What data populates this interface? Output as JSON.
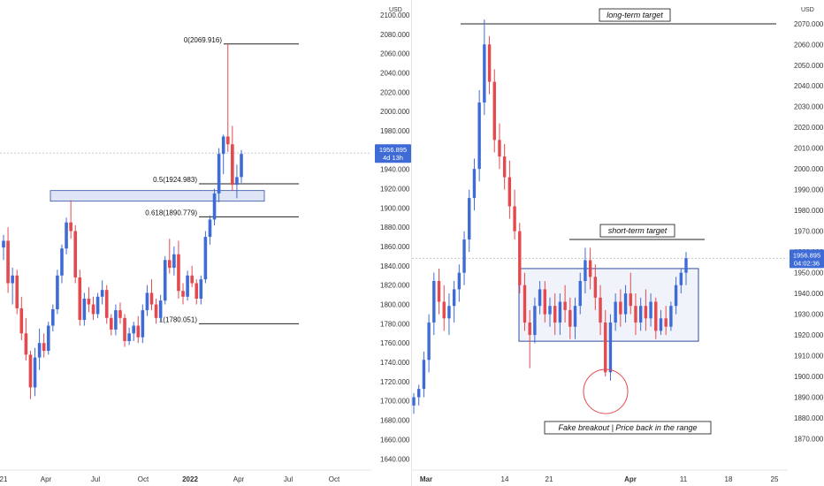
{
  "colors": {
    "up": "#3f6bd6",
    "down": "#e5484d",
    "zone_fill": "#d6dcf2",
    "zone_stroke": "#2f4ea6",
    "axis_text": "#333333",
    "price_badge": "#3f6bd6",
    "line": "#222222",
    "divider": "#e6e6e6"
  },
  "chart_data": [
    {
      "type": "candlestick",
      "name_shown": "",
      "currency_label": "USD",
      "y_axis_ticks": [
        "2100.000",
        "2080.000",
        "2060.000",
        "2040.000",
        "2020.000",
        "2000.000",
        "1980.000",
        "1960.000",
        "1940.000",
        "1920.000",
        "1900.000",
        "1880.000",
        "1860.000",
        "1840.000",
        "1820.000",
        "1800.000",
        "1780.000",
        "1760.000",
        "1740.000",
        "1720.000",
        "1700.000",
        "1680.000",
        "1660.000",
        "1640.000"
      ],
      "ylim": [
        1632,
        2110
      ],
      "x_axis_ticks": [
        "21",
        "Apr",
        "Jul",
        "Oct",
        "2022",
        "Apr",
        "Jul",
        "Oct"
      ],
      "fib_levels": [
        {
          "label": "0(2069.916)",
          "value": 2069.916
        },
        {
          "label": "0.5(1924.983)",
          "value": 1924.983
        },
        {
          "label": "0.618(1890.779)",
          "value": 1890.779
        },
        {
          "label": "1(1780.051)",
          "value": 1780.051
        }
      ],
      "zone": {
        "low": 1907,
        "high": 1918
      },
      "last_price": {
        "price": "1956.895",
        "countdown": "4d 13h"
      },
      "candles": [
        [
          1859,
          1872,
          1846,
          1866
        ],
        [
          1866,
          1880,
          1812,
          1822
        ],
        [
          1822,
          1838,
          1800,
          1830
        ],
        [
          1830,
          1836,
          1790,
          1796
        ],
        [
          1796,
          1808,
          1763,
          1770
        ],
        [
          1770,
          1786,
          1742,
          1748
        ],
        [
          1748,
          1752,
          1702,
          1714
        ],
        [
          1714,
          1755,
          1705,
          1745
        ],
        [
          1745,
          1775,
          1732,
          1760
        ],
        [
          1760,
          1770,
          1745,
          1752
        ],
        [
          1752,
          1782,
          1748,
          1778
        ],
        [
          1778,
          1800,
          1772,
          1795
        ],
        [
          1795,
          1836,
          1790,
          1830
        ],
        [
          1830,
          1862,
          1822,
          1858
        ],
        [
          1858,
          1890,
          1852,
          1885
        ],
        [
          1885,
          1908,
          1868,
          1876
        ],
        [
          1876,
          1882,
          1822,
          1828
        ],
        [
          1828,
          1836,
          1778,
          1784
        ],
        [
          1784,
          1812,
          1778,
          1806
        ],
        [
          1806,
          1818,
          1792,
          1800
        ],
        [
          1800,
          1808,
          1784,
          1790
        ],
        [
          1790,
          1812,
          1786,
          1808
        ],
        [
          1808,
          1825,
          1800,
          1815
        ],
        [
          1815,
          1820,
          1780,
          1786
        ],
        [
          1786,
          1790,
          1768,
          1774
        ],
        [
          1774,
          1800,
          1768,
          1794
        ],
        [
          1794,
          1802,
          1780,
          1786
        ],
        [
          1786,
          1790,
          1756,
          1762
        ],
        [
          1762,
          1776,
          1758,
          1770
        ],
        [
          1770,
          1782,
          1762,
          1778
        ],
        [
          1778,
          1788,
          1760,
          1766
        ],
        [
          1766,
          1800,
          1760,
          1794
        ],
        [
          1794,
          1820,
          1788,
          1812
        ],
        [
          1812,
          1826,
          1794,
          1800
        ],
        [
          1800,
          1806,
          1780,
          1786
        ],
        [
          1786,
          1810,
          1782,
          1804
        ],
        [
          1804,
          1850,
          1800,
          1846
        ],
        [
          1846,
          1868,
          1832,
          1838
        ],
        [
          1838,
          1860,
          1830,
          1852
        ],
        [
          1852,
          1866,
          1806,
          1814
        ],
        [
          1814,
          1822,
          1800,
          1808
        ],
        [
          1808,
          1835,
          1804,
          1830
        ],
        [
          1830,
          1840,
          1818,
          1822
        ],
        [
          1822,
          1826,
          1800,
          1806
        ],
        [
          1806,
          1830,
          1800,
          1826
        ],
        [
          1826,
          1876,
          1822,
          1870
        ],
        [
          1870,
          1892,
          1862,
          1888
        ],
        [
          1888,
          1920,
          1882,
          1915
        ],
        [
          1915,
          1962,
          1906,
          1956
        ],
        [
          1956,
          1976,
          1935,
          1974
        ],
        [
          1974,
          2070,
          1958,
          1966
        ],
        [
          1966,
          1985,
          1918,
          1924
        ],
        [
          1924,
          1945,
          1910,
          1932
        ],
        [
          1932,
          1960,
          1926,
          1956
        ]
      ]
    },
    {
      "type": "candlestick",
      "name_shown": "",
      "currency_label": "USD",
      "y_axis_ticks": [
        "2070.000",
        "2060.000",
        "2050.000",
        "2040.000",
        "2030.000",
        "2020.000",
        "2010.000",
        "2000.000",
        "1990.000",
        "1980.000",
        "1970.000",
        "1960.000",
        "1950.000",
        "1940.000",
        "1930.000",
        "1920.000",
        "1910.000",
        "1900.000",
        "1890.000",
        "1880.000",
        "1870.000"
      ],
      "ylim": [
        1860,
        2078
      ],
      "x_axis_ticks": [
        "Mar",
        "14",
        "21",
        "Apr",
        "11",
        "18",
        "25"
      ],
      "last_price": {
        "price": "1956.895",
        "countdown": "04:02:36"
      },
      "annotations": [
        {
          "label": "long-term target",
          "value": 2069.9
        },
        {
          "label": "short-term target",
          "value": 1966
        },
        {
          "label": "Fake breakout | Price back in the range"
        }
      ],
      "range_box": {
        "low": 1917,
        "high": 1952
      },
      "candles": [
        [
          1886,
          1892,
          1882,
          1890
        ],
        [
          1890,
          1896,
          1886,
          1894
        ],
        [
          1894,
          1912,
          1890,
          1908
        ],
        [
          1908,
          1930,
          1902,
          1926
        ],
        [
          1926,
          1950,
          1920,
          1946
        ],
        [
          1946,
          1952,
          1930,
          1936
        ],
        [
          1936,
          1944,
          1922,
          1928
        ],
        [
          1928,
          1940,
          1920,
          1934
        ],
        [
          1934,
          1946,
          1926,
          1942
        ],
        [
          1942,
          1954,
          1936,
          1950
        ],
        [
          1950,
          1970,
          1944,
          1966
        ],
        [
          1966,
          1990,
          1960,
          1986
        ],
        [
          1986,
          2005,
          1980,
          2000
        ],
        [
          2000,
          2038,
          1994,
          2032
        ],
        [
          2032,
          2072,
          2026,
          2060
        ],
        [
          2060,
          2064,
          2036,
          2042
        ],
        [
          2042,
          2048,
          2008,
          2014
        ],
        [
          2014,
          2022,
          2000,
          2006
        ],
        [
          2006,
          2012,
          1990,
          1996
        ],
        [
          1996,
          2004,
          1976,
          1982
        ],
        [
          1982,
          1990,
          1966,
          1970
        ],
        [
          1970,
          1974,
          1940,
          1944
        ],
        [
          1944,
          1950,
          1922,
          1926
        ],
        [
          1926,
          1932,
          1904,
          1920
        ],
        [
          1920,
          1938,
          1916,
          1934
        ],
        [
          1934,
          1946,
          1930,
          1942
        ],
        [
          1942,
          1946,
          1926,
          1930
        ],
        [
          1930,
          1938,
          1924,
          1934
        ],
        [
          1934,
          1940,
          1920,
          1926
        ],
        [
          1926,
          1940,
          1920,
          1936
        ],
        [
          1936,
          1944,
          1926,
          1932
        ],
        [
          1932,
          1938,
          1918,
          1924
        ],
        [
          1924,
          1938,
          1918,
          1934
        ],
        [
          1934,
          1950,
          1930,
          1946
        ],
        [
          1946,
          1962,
          1940,
          1956
        ],
        [
          1956,
          1962,
          1942,
          1948
        ],
        [
          1948,
          1954,
          1932,
          1938
        ],
        [
          1938,
          1944,
          1920,
          1926
        ],
        [
          1926,
          1932,
          1900,
          1902
        ],
        [
          1902,
          1930,
          1898,
          1926
        ],
        [
          1926,
          1940,
          1922,
          1936
        ],
        [
          1936,
          1942,
          1924,
          1930
        ],
        [
          1930,
          1944,
          1926,
          1940
        ],
        [
          1940,
          1950,
          1930,
          1934
        ],
        [
          1934,
          1940,
          1920,
          1926
        ],
        [
          1926,
          1938,
          1922,
          1934
        ],
        [
          1934,
          1942,
          1922,
          1928
        ],
        [
          1928,
          1940,
          1924,
          1936
        ],
        [
          1936,
          1938,
          1918,
          1922
        ],
        [
          1922,
          1932,
          1920,
          1928
        ],
        [
          1928,
          1934,
          1920,
          1924
        ],
        [
          1924,
          1936,
          1922,
          1934
        ],
        [
          1934,
          1948,
          1930,
          1944
        ],
        [
          1944,
          1952,
          1940,
          1950
        ],
        [
          1950,
          1960,
          1944,
          1957
        ]
      ]
    }
  ]
}
